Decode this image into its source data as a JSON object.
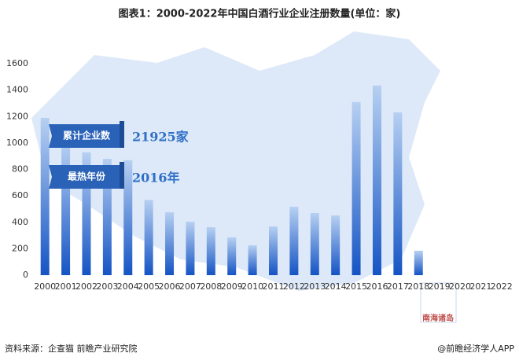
{
  "chart_data": {
    "type": "bar",
    "title": "图表1：2000-2022年中国白酒行业企业注册数量(单位：家)",
    "categories": [
      "2000",
      "2001",
      "2002",
      "2003",
      "2004",
      "2005",
      "2006",
      "2007",
      "2008",
      "2009",
      "2010",
      "2011",
      "2012",
      "2013",
      "2014",
      "2015",
      "2016",
      "2017",
      "2018",
      "2019",
      "2020",
      "2021",
      "2022"
    ],
    "values": [
      1190,
      1000,
      930,
      880,
      870,
      570,
      476,
      405,
      363,
      286,
      226,
      369,
      518,
      470,
      452,
      1310,
      1435,
      1232,
      185,
      0,
      0,
      0,
      0
    ],
    "color": "#1554c4",
    "ylim": [
      0,
      1600
    ],
    "yticks": [
      0,
      200,
      400,
      600,
      800,
      1000,
      1200,
      1400,
      1600
    ],
    "grid": false,
    "annotations": [
      {
        "label": "累计企业数",
        "value": "21925家"
      },
      {
        "label": "最热年份",
        "value": "2016年"
      }
    ],
    "map_label": "南海诸岛",
    "source": "资料来源：企查猫 前瞻产业研究院",
    "credit": "@前瞻经济学人APP"
  }
}
